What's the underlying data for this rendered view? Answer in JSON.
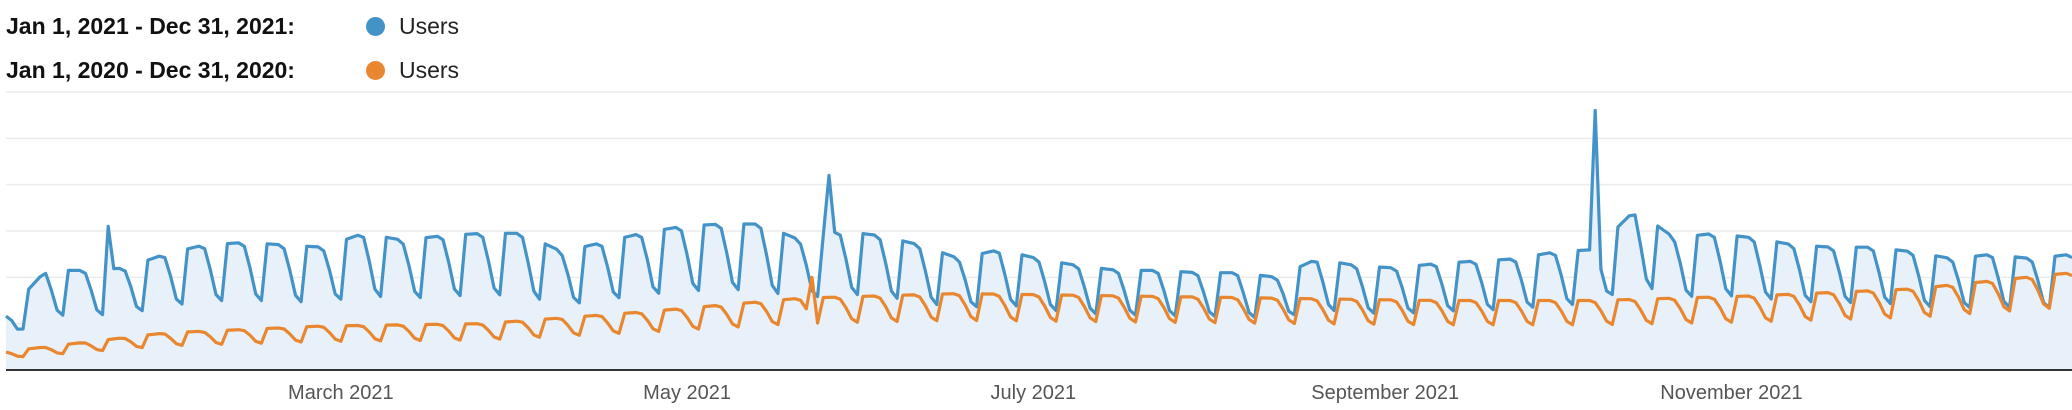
{
  "legend": {
    "rows": [
      {
        "period": "Jan 1, 2021 - Dec 31, 2021:",
        "series": "Users",
        "color": "#4393c9"
      },
      {
        "period": "Jan 1, 2020 - Dec 31, 2020:",
        "series": "Users",
        "color": "#e8872f"
      }
    ]
  },
  "chart_data": {
    "type": "line",
    "x_start": "2021-01-01",
    "x_end": "2021-12-31",
    "x_tick_labels": [
      {
        "label": "March 2021",
        "date": "2021-03-01"
      },
      {
        "label": "May 2021",
        "date": "2021-05-01"
      },
      {
        "label": "July 2021",
        "date": "2021-07-01"
      },
      {
        "label": "September 2021",
        "date": "2021-09-01"
      },
      {
        "label": "November 2021",
        "date": "2021-11-01"
      }
    ],
    "ylim": [
      0,
      600
    ],
    "grid": true,
    "series": [
      {
        "name": "Users",
        "color": "#4393c9",
        "fill": "#e8f1f9",
        "weekly_pattern": [
          1.0,
          1.0,
          1.0,
          0.97,
          0.8,
          0.6,
          0.55
        ],
        "weekly_highs": [
          [
            0,
            120
          ],
          [
            1,
            215
          ],
          [
            2,
            215
          ],
          [
            3,
            220
          ],
          [
            4,
            250
          ],
          [
            5,
            270
          ],
          [
            6,
            275
          ],
          [
            7,
            270
          ],
          [
            8,
            265
          ],
          [
            9,
            295
          ],
          [
            10,
            280
          ],
          [
            11,
            290
          ],
          [
            12,
            295
          ],
          [
            13,
            295
          ],
          [
            14,
            255
          ],
          [
            15,
            275
          ],
          [
            16,
            295
          ],
          [
            17,
            310
          ],
          [
            18,
            315
          ],
          [
            19,
            315
          ],
          [
            20,
            280
          ],
          [
            21,
            300
          ],
          [
            22,
            290
          ],
          [
            23,
            270
          ],
          [
            24,
            240
          ],
          [
            25,
            260
          ],
          [
            26,
            240
          ],
          [
            27,
            225
          ],
          [
            28,
            215
          ],
          [
            29,
            215
          ],
          [
            30,
            210
          ],
          [
            31,
            210
          ],
          [
            32,
            200
          ],
          [
            33,
            240
          ],
          [
            34,
            225
          ],
          [
            35,
            220
          ],
          [
            36,
            230
          ],
          [
            37,
            235
          ],
          [
            38,
            240
          ],
          [
            39,
            255
          ],
          [
            40,
            260
          ],
          [
            41,
            345
          ],
          [
            42,
            285
          ],
          [
            43,
            295
          ],
          [
            44,
            285
          ],
          [
            45,
            270
          ],
          [
            46,
            265
          ],
          [
            47,
            265
          ],
          [
            48,
            255
          ],
          [
            49,
            240
          ],
          [
            50,
            250
          ],
          [
            51,
            240
          ],
          [
            52,
            250
          ]
        ],
        "spikes": [
          {
            "date": "2021-01-19",
            "value": 310
          },
          {
            "date": "2021-05-26",
            "value": 420
          },
          {
            "date": "2021-10-08",
            "value": 560
          }
        ]
      },
      {
        "name": "Users",
        "color": "#e8872f",
        "weekly_pattern": [
          1.0,
          1.0,
          1.0,
          0.97,
          0.85,
          0.7,
          0.65
        ],
        "weekly_highs": [
          [
            0,
            40
          ],
          [
            4,
            80
          ],
          [
            8,
            95
          ],
          [
            12,
            100
          ],
          [
            16,
            125
          ],
          [
            20,
            155
          ],
          [
            24,
            165
          ],
          [
            28,
            160
          ],
          [
            32,
            155
          ],
          [
            36,
            150
          ],
          [
            40,
            150
          ],
          [
            44,
            160
          ],
          [
            48,
            175
          ],
          [
            52,
            210
          ]
        ],
        "spikes": [
          {
            "date": "2021-05-23",
            "value": 200
          }
        ]
      }
    ]
  }
}
